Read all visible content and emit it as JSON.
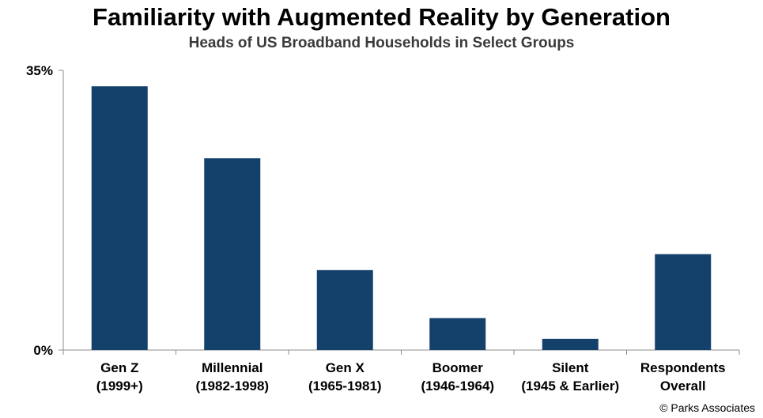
{
  "chart_title": "Familiarity with Augmented Reality by Generation",
  "chart_subtitle": "Heads of US Broadband Households in Select Groups",
  "source_note": "© Parks Associates",
  "colors": {
    "bar": "#14416b",
    "axis": "#8c8c8c"
  },
  "chart_data": {
    "type": "bar",
    "title": "Familiarity with Augmented Reality by Generation",
    "subtitle": "Heads of US Broadband Households in Select Groups",
    "categories": [
      [
        "Gen Z",
        "(1999+)"
      ],
      [
        "Millennial",
        "(1982-1998)"
      ],
      [
        "Gen X",
        "(1965-1981)"
      ],
      [
        "Boomer",
        "(1946-1964)"
      ],
      [
        "Silent",
        "(1945 & Earlier)"
      ],
      [
        "Respondents",
        "Overall"
      ]
    ],
    "values": [
      33,
      24,
      10,
      4,
      1.4,
      12
    ],
    "ylim": [
      0,
      35
    ],
    "y_ticks": [
      {
        "value": 0,
        "label": "0%"
      },
      {
        "value": 35,
        "label": "35%"
      }
    ],
    "grid": false,
    "xlabel": "",
    "ylabel": ""
  }
}
